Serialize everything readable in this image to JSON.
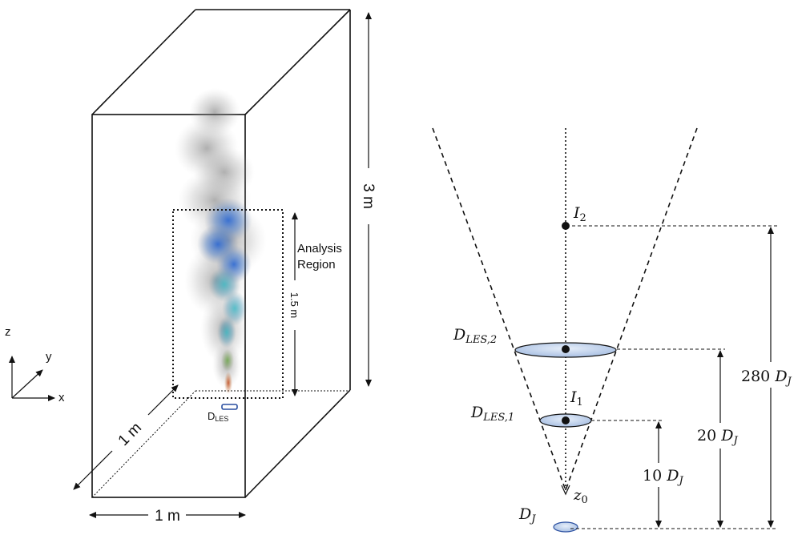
{
  "left_figure": {
    "height_label": "3 m",
    "depth_label": "1 m",
    "width_label": "1 m",
    "region_height_label": "1.5 m",
    "region_label_line1": "Analysis",
    "region_label_line2": "Region",
    "nozzle_label_main": "D",
    "nozzle_label_sub": "LES",
    "axes": {
      "z": "z",
      "y": "y",
      "x": "x"
    }
  },
  "right_figure": {
    "i2": {
      "main": "I",
      "sub": "2"
    },
    "i1": {
      "main": "I",
      "sub": "1"
    },
    "d_les_2": {
      "main": "D",
      "sub": "LES,2"
    },
    "d_les_1": {
      "main": "D",
      "sub": "LES,1"
    },
    "z0": {
      "main": "z",
      "sub": "0"
    },
    "dj": {
      "main": "D",
      "sub": "J"
    },
    "dim_10": {
      "num": "10 ",
      "main": "D",
      "sub": "J"
    },
    "dim_20": {
      "num": "20 ",
      "main": "D",
      "sub": "J"
    },
    "dim_280": {
      "num": "280 ",
      "main": "D",
      "sub": "J"
    }
  },
  "colors": {
    "plume_blue": "#2f5fb8",
    "plume_cyan": "#3aa6b8",
    "plume_grey": "#8a8a8a",
    "ellipse_fill": "#b9cbe6",
    "nozzle_outline": "#2a4fa0"
  }
}
